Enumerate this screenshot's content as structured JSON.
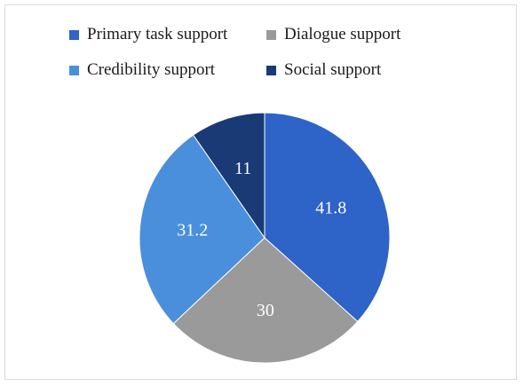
{
  "chart_data": {
    "type": "pie",
    "title": "",
    "categories": [
      "Primary task support",
      "Dialogue support",
      "Credibility support",
      "Social support"
    ],
    "values": [
      41.8,
      30,
      31.2,
      11
    ],
    "value_labels": [
      "41.8",
      "30",
      "31.2",
      "11"
    ],
    "colors": [
      "#2e63c8",
      "#9a9a9a",
      "#4a8fdc",
      "#193a75"
    ],
    "legend_position": "top",
    "start_angle_deg": 0,
    "direction": "clockwise"
  }
}
